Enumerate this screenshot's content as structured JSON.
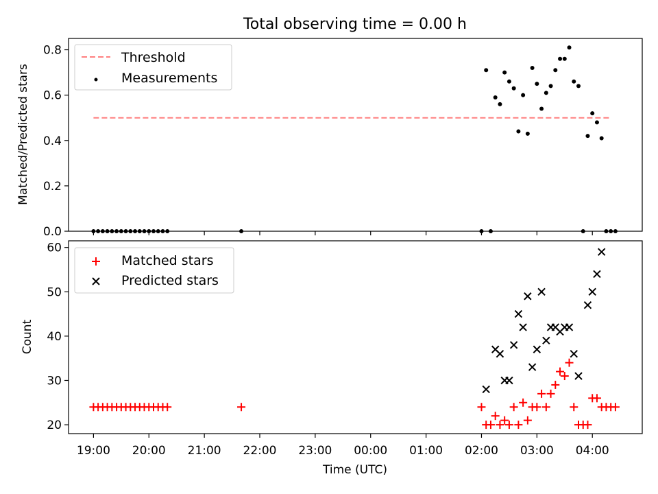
{
  "title": "Total observing time = 0.00 h",
  "colors": {
    "threshold": "#ff7f7f",
    "measurements": "#000000",
    "matched": "#ff0000",
    "predicted": "#000000"
  },
  "chart_data": [
    {
      "type": "scatter",
      "ylabel": "Matched/Predicted stars",
      "xlabel": "",
      "ylim": [
        0,
        0.85
      ],
      "yticks": [
        "0.0",
        "0.2",
        "0.4",
        "0.6",
        "0.8"
      ],
      "legend": {
        "placement": "upper-left",
        "entries": [
          "Threshold",
          "Measurements"
        ]
      },
      "threshold": {
        "name": "Threshold",
        "value": 0.5,
        "x_range": [
          "19:00",
          "04:20"
        ]
      },
      "series": [
        {
          "name": "Measurements",
          "marker": "dot",
          "points": [
            [
              "19:00",
              0
            ],
            [
              "19:05",
              0
            ],
            [
              "19:10",
              0
            ],
            [
              "19:15",
              0
            ],
            [
              "19:20",
              0
            ],
            [
              "19:25",
              0
            ],
            [
              "19:30",
              0
            ],
            [
              "19:35",
              0
            ],
            [
              "19:40",
              0
            ],
            [
              "19:45",
              0
            ],
            [
              "19:50",
              0
            ],
            [
              "19:55",
              0
            ],
            [
              "20:00",
              0
            ],
            [
              "20:05",
              0
            ],
            [
              "20:10",
              0
            ],
            [
              "20:15",
              0
            ],
            [
              "20:20",
              0
            ],
            [
              "21:40",
              0
            ],
            [
              "02:00",
              0
            ],
            [
              "02:05",
              0.71
            ],
            [
              "02:10",
              0
            ],
            [
              "02:15",
              0.59
            ],
            [
              "02:20",
              0.56
            ],
            [
              "02:25",
              0.7
            ],
            [
              "02:30",
              0.66
            ],
            [
              "02:35",
              0.63
            ],
            [
              "02:40",
              0.44
            ],
            [
              "02:45",
              0.6
            ],
            [
              "02:50",
              0.43
            ],
            [
              "02:55",
              0.72
            ],
            [
              "03:00",
              0.65
            ],
            [
              "03:05",
              0.54
            ],
            [
              "03:10",
              0.61
            ],
            [
              "03:15",
              0.64
            ],
            [
              "03:20",
              0.71
            ],
            [
              "03:25",
              0.76
            ],
            [
              "03:30",
              0.76
            ],
            [
              "03:35",
              0.81
            ],
            [
              "03:40",
              0.66
            ],
            [
              "03:45",
              0.64
            ],
            [
              "03:50",
              0
            ],
            [
              "03:55",
              0.42
            ],
            [
              "04:00",
              0.52
            ],
            [
              "04:05",
              0.48
            ],
            [
              "04:10",
              0.41
            ],
            [
              "04:15",
              0
            ],
            [
              "04:20",
              0
            ],
            [
              "04:25",
              0
            ]
          ]
        }
      ]
    },
    {
      "type": "scatter",
      "ylabel": "Count",
      "xlabel": "Time (UTC)",
      "ylim": [
        18,
        61.5
      ],
      "yticks": [
        "20",
        "30",
        "40",
        "50",
        "60"
      ],
      "xticks": [
        "19:00",
        "20:00",
        "21:00",
        "22:00",
        "23:00",
        "00:00",
        "01:00",
        "02:00",
        "03:00",
        "04:00"
      ],
      "legend": {
        "placement": "upper-left",
        "entries": [
          "Matched stars",
          "Predicted stars"
        ]
      },
      "series": [
        {
          "name": "Matched stars",
          "marker": "plus",
          "points": [
            [
              "19:00",
              24
            ],
            [
              "19:05",
              24
            ],
            [
              "19:10",
              24
            ],
            [
              "19:15",
              24
            ],
            [
              "19:20",
              24
            ],
            [
              "19:25",
              24
            ],
            [
              "19:30",
              24
            ],
            [
              "19:35",
              24
            ],
            [
              "19:40",
              24
            ],
            [
              "19:45",
              24
            ],
            [
              "19:50",
              24
            ],
            [
              "19:55",
              24
            ],
            [
              "20:00",
              24
            ],
            [
              "20:05",
              24
            ],
            [
              "20:10",
              24
            ],
            [
              "20:15",
              24
            ],
            [
              "20:20",
              24
            ],
            [
              "21:40",
              24
            ],
            [
              "02:00",
              24
            ],
            [
              "02:05",
              20
            ],
            [
              "02:10",
              20
            ],
            [
              "02:15",
              22
            ],
            [
              "02:20",
              20
            ],
            [
              "02:25",
              21
            ],
            [
              "02:30",
              20
            ],
            [
              "02:35",
              24
            ],
            [
              "02:40",
              20
            ],
            [
              "02:45",
              25
            ],
            [
              "02:50",
              21
            ],
            [
              "02:55",
              24
            ],
            [
              "03:00",
              24
            ],
            [
              "03:05",
              27
            ],
            [
              "03:10",
              24
            ],
            [
              "03:15",
              27
            ],
            [
              "03:20",
              29
            ],
            [
              "03:25",
              32
            ],
            [
              "03:30",
              31
            ],
            [
              "03:35",
              34
            ],
            [
              "03:40",
              24
            ],
            [
              "03:45",
              20
            ],
            [
              "03:50",
              20
            ],
            [
              "03:55",
              20
            ],
            [
              "04:00",
              26
            ],
            [
              "04:05",
              26
            ],
            [
              "04:10",
              24
            ],
            [
              "04:15",
              24
            ],
            [
              "04:20",
              24
            ],
            [
              "04:25",
              24
            ]
          ]
        },
        {
          "name": "Predicted stars",
          "marker": "x",
          "points": [
            [
              "02:05",
              28
            ],
            [
              "02:15",
              37
            ],
            [
              "02:20",
              36
            ],
            [
              "02:25",
              30
            ],
            [
              "02:30",
              30
            ],
            [
              "02:35",
              38
            ],
            [
              "02:40",
              45
            ],
            [
              "02:45",
              42
            ],
            [
              "02:50",
              49
            ],
            [
              "02:55",
              33
            ],
            [
              "03:00",
              37
            ],
            [
              "03:05",
              50
            ],
            [
              "03:10",
              39
            ],
            [
              "03:15",
              42
            ],
            [
              "03:20",
              42
            ],
            [
              "03:25",
              41
            ],
            [
              "03:30",
              42
            ],
            [
              "03:35",
              42
            ],
            [
              "03:40",
              36
            ],
            [
              "03:45",
              31
            ],
            [
              "03:55",
              47
            ],
            [
              "04:00",
              50
            ],
            [
              "04:05",
              54
            ],
            [
              "04:10",
              59
            ]
          ]
        }
      ]
    }
  ]
}
